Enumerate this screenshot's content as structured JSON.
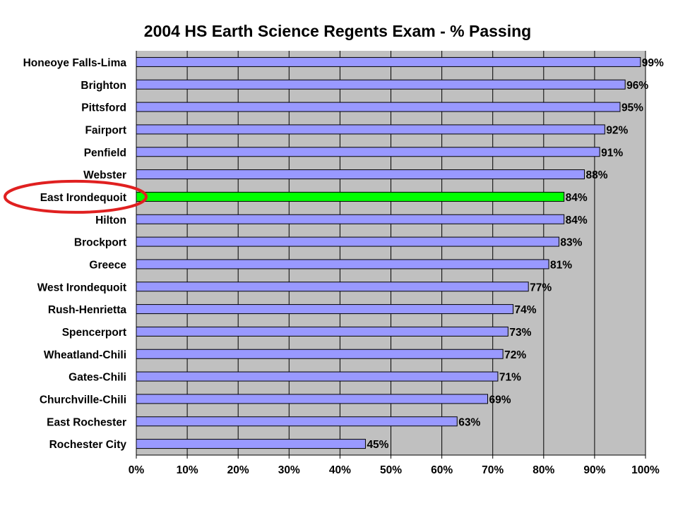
{
  "chart_data": {
    "type": "bar",
    "orientation": "horizontal",
    "title": "2004 HS Earth Science Regents Exam - % Passing",
    "xlabel": "",
    "ylabel": "",
    "categories": [
      "Honeoye Falls-Lima",
      "Brighton",
      "Pittsford",
      "Fairport",
      "Penfield",
      "Webster",
      "East Irondequoit",
      "Hilton",
      "Brockport",
      "Greece",
      "West Irondequoit",
      "Rush-Henrietta",
      "Spencerport",
      "Wheatland-Chili",
      "Gates-Chili",
      "Churchville-Chili",
      "East Rochester",
      "Rochester City"
    ],
    "values": [
      99,
      96,
      95,
      92,
      91,
      88,
      84,
      84,
      83,
      81,
      77,
      74,
      73,
      72,
      71,
      69,
      63,
      45
    ],
    "value_labels": [
      "99%",
      "96%",
      "95%",
      "92%",
      "91%",
      "88%",
      "84%",
      "84%",
      "83%",
      "81%",
      "77%",
      "74%",
      "73%",
      "72%",
      "71%",
      "69%",
      "63%",
      "45%"
    ],
    "xlim": [
      0,
      100
    ],
    "xticks": [
      0,
      10,
      20,
      30,
      40,
      50,
      60,
      70,
      80,
      90,
      100
    ],
    "xtick_labels": [
      "0%",
      "10%",
      "20%",
      "30%",
      "40%",
      "50%",
      "60%",
      "70%",
      "80%",
      "90%",
      "100%"
    ],
    "highlight_category": "East Irondequoit",
    "grid": "vertical",
    "legend": "none",
    "colors": {
      "bar": "#9999ff",
      "highlight_bar": "#00ff00",
      "plot_background": "#c0c0c0",
      "gridline": "#000000",
      "highlight_ellipse": "#e02020"
    }
  }
}
